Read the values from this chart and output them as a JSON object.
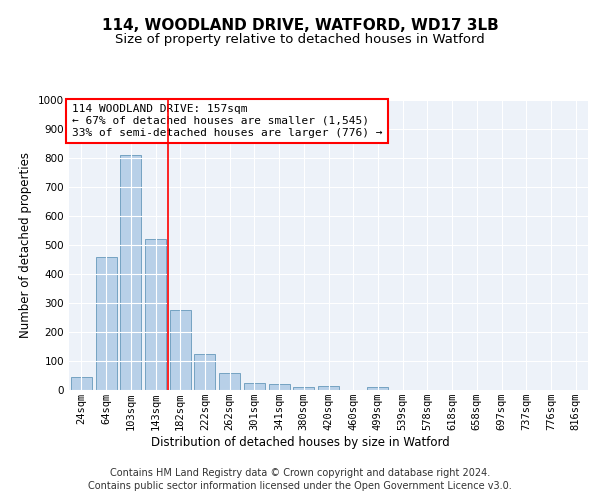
{
  "title": "114, WOODLAND DRIVE, WATFORD, WD17 3LB",
  "subtitle": "Size of property relative to detached houses in Watford",
  "xlabel": "Distribution of detached houses by size in Watford",
  "ylabel": "Number of detached properties",
  "categories": [
    "24sqm",
    "64sqm",
    "103sqm",
    "143sqm",
    "182sqm",
    "222sqm",
    "262sqm",
    "301sqm",
    "341sqm",
    "380sqm",
    "420sqm",
    "460sqm",
    "499sqm",
    "539sqm",
    "578sqm",
    "618sqm",
    "658sqm",
    "697sqm",
    "737sqm",
    "776sqm",
    "816sqm"
  ],
  "values": [
    45,
    460,
    810,
    520,
    275,
    125,
    60,
    25,
    20,
    12,
    15,
    0,
    10,
    0,
    0,
    0,
    0,
    0,
    0,
    0,
    0
  ],
  "bar_color": "#b8d0e8",
  "bar_edge_color": "#6699bb",
  "red_line_x": 3.5,
  "annotation_text": "114 WOODLAND DRIVE: 157sqm\n← 67% of detached houses are smaller (1,545)\n33% of semi-detached houses are larger (776) →",
  "annotation_box_color": "white",
  "annotation_box_edge": "red",
  "ylim": [
    0,
    1000
  ],
  "yticks": [
    0,
    100,
    200,
    300,
    400,
    500,
    600,
    700,
    800,
    900,
    1000
  ],
  "bg_color": "#edf2f9",
  "footer1": "Contains HM Land Registry data © Crown copyright and database right 2024.",
  "footer2": "Contains public sector information licensed under the Open Government Licence v3.0.",
  "title_fontsize": 11,
  "subtitle_fontsize": 9.5,
  "axis_label_fontsize": 8.5,
  "tick_fontsize": 7.5,
  "annotation_fontsize": 8,
  "footer_fontsize": 7
}
